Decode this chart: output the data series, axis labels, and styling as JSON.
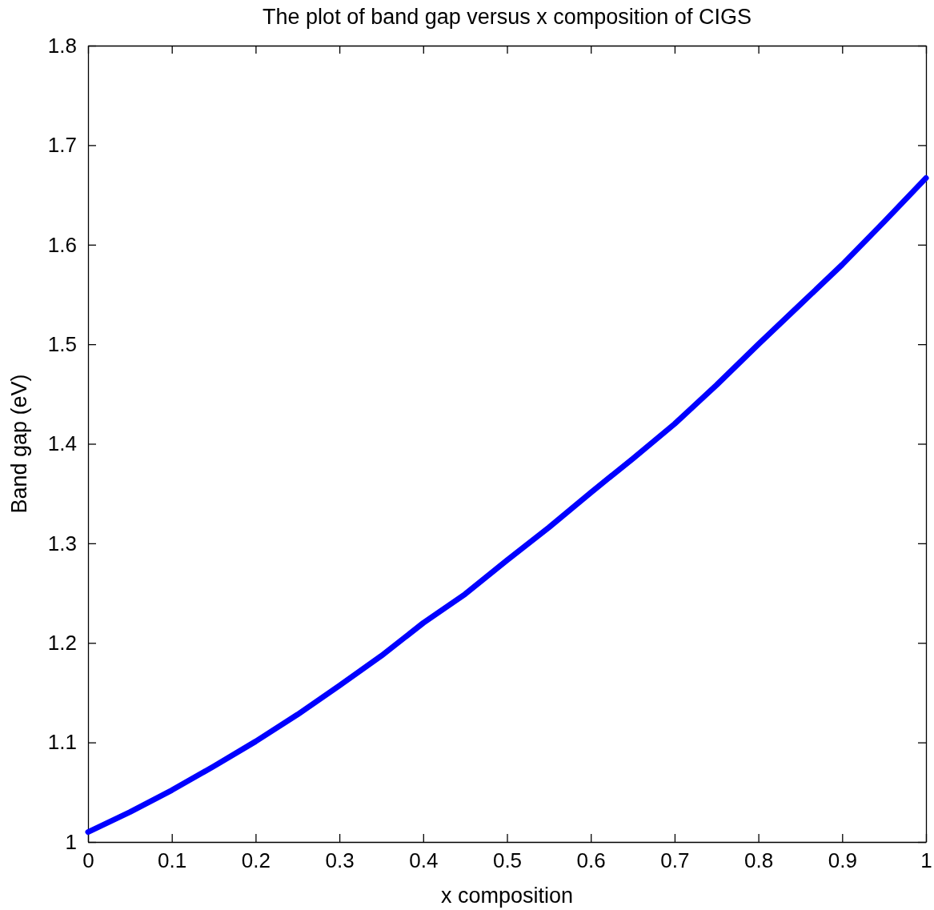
{
  "chart_data": {
    "type": "line",
    "title": "The plot of band gap versus x composition of CIGS",
    "xlabel": "x composition",
    "ylabel": "Band gap (eV)",
    "x": [
      0,
      0.05,
      0.1,
      0.15,
      0.2,
      0.25,
      0.3,
      0.35,
      0.4,
      0.45,
      0.5,
      0.55,
      0.6,
      0.65,
      0.7,
      0.75,
      0.8,
      0.85,
      0.9,
      0.95,
      1
    ],
    "series": [
      {
        "color": "#0000ff",
        "values": [
          1.01,
          1.03,
          1.052,
          1.076,
          1.101,
          1.128,
          1.157,
          1.187,
          1.22,
          1.249,
          1.283,
          1.316,
          1.351,
          1.385,
          1.42,
          1.459,
          1.5,
          1.54,
          1.58,
          1.623,
          1.667
        ]
      }
    ],
    "xlim": [
      0,
      1
    ],
    "xticks": [
      0,
      0.1,
      0.2,
      0.3,
      0.4,
      0.5,
      0.6,
      0.7,
      0.8,
      0.9,
      1
    ],
    "ylim": [
      1,
      1.8
    ],
    "yticks": [
      1,
      1.1,
      1.2,
      1.3,
      1.4,
      1.5,
      1.6,
      1.7,
      1.8
    ],
    "grid": false,
    "marker": "none",
    "line_style": "solid"
  }
}
